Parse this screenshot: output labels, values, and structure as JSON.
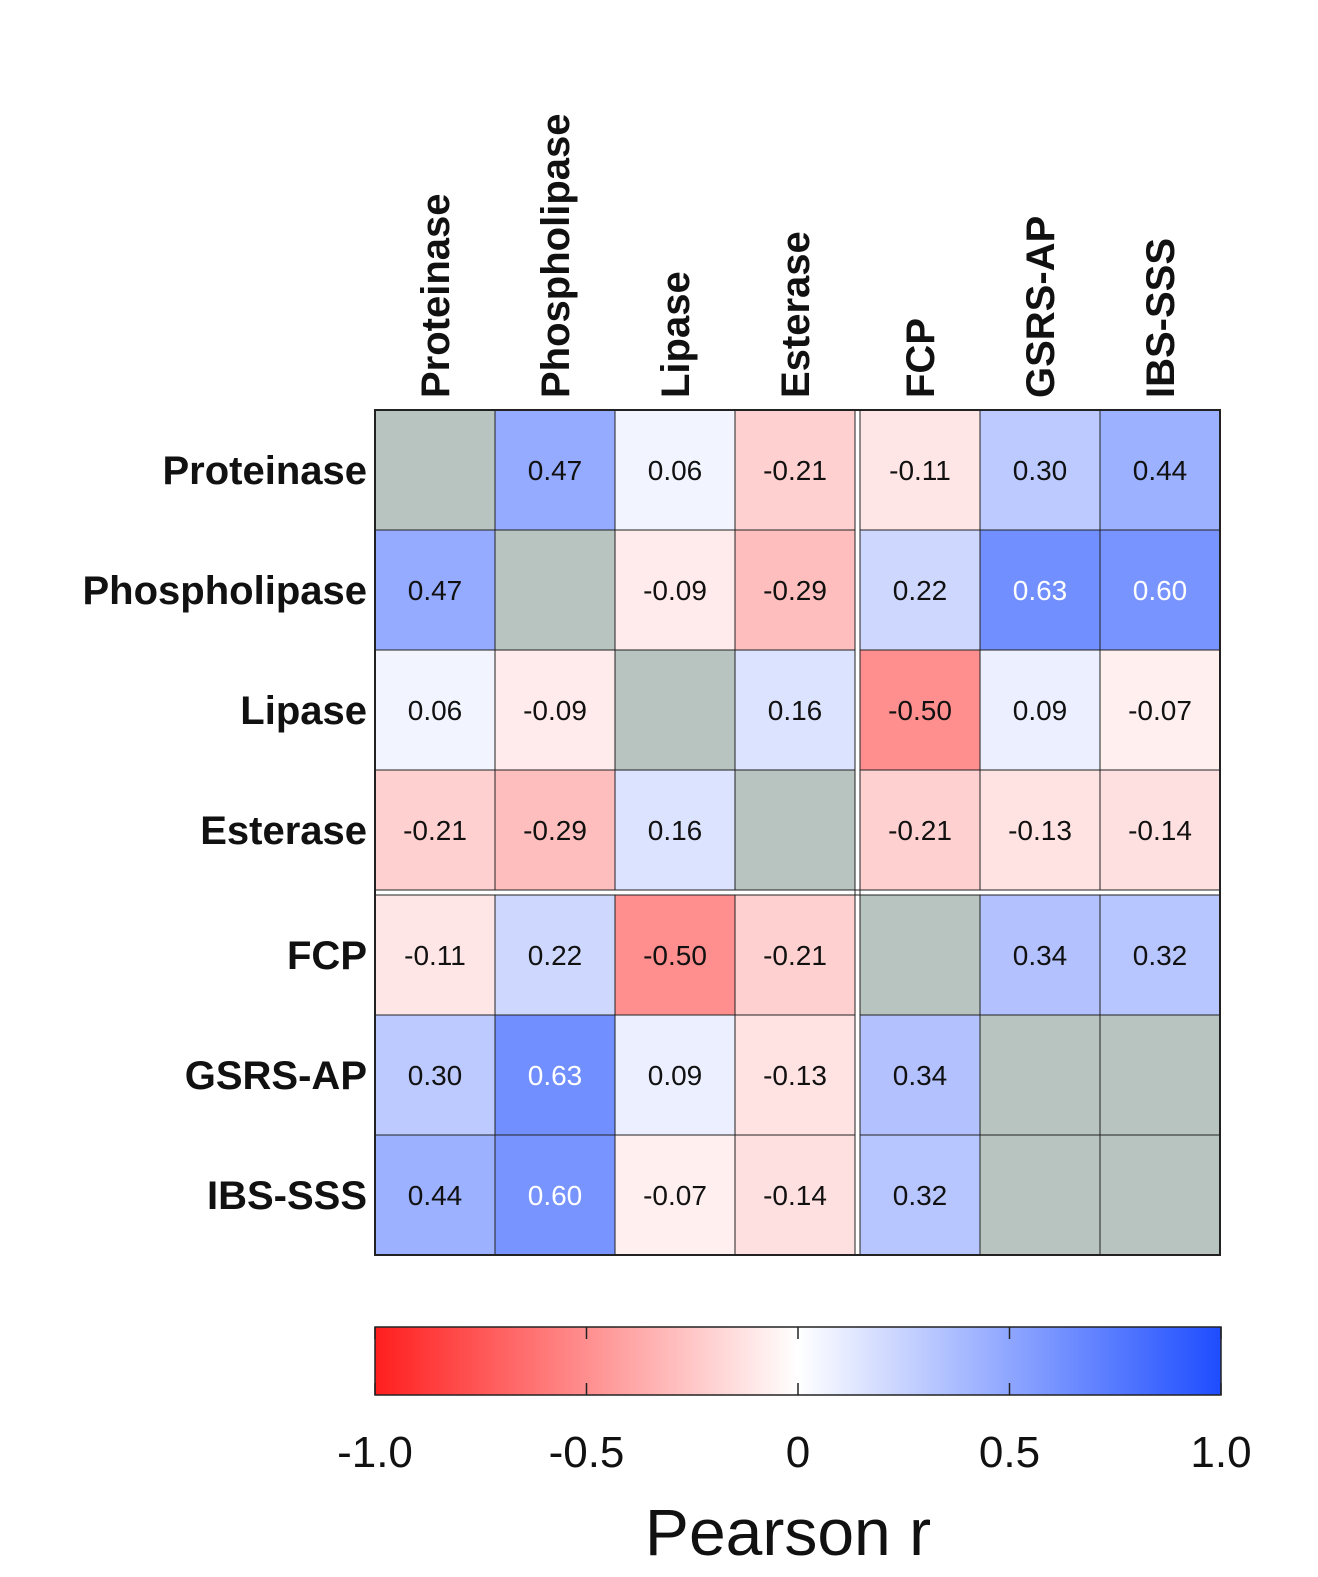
{
  "chart_data": {
    "type": "heatmap",
    "title": "",
    "rows": [
      "Proteinase",
      "Phospholipase",
      "Lipase",
      "Esterase",
      "FCP",
      "GSRS-AP",
      "IBS-SSS"
    ],
    "columns": [
      "Proteinase",
      "Phospholipase",
      "Lipase",
      "Esterase",
      "FCP",
      "GSRS-AP",
      "IBS-SSS"
    ],
    "values": [
      [
        null,
        0.47,
        0.06,
        -0.21,
        -0.11,
        0.3,
        0.44
      ],
      [
        0.47,
        null,
        -0.09,
        -0.29,
        0.22,
        0.63,
        0.6
      ],
      [
        0.06,
        -0.09,
        null,
        0.16,
        -0.5,
        0.09,
        -0.07
      ],
      [
        -0.21,
        -0.29,
        0.16,
        null,
        -0.21,
        -0.13,
        -0.14
      ],
      [
        -0.11,
        0.22,
        -0.5,
        -0.21,
        null,
        0.34,
        0.32
      ],
      [
        0.3,
        0.63,
        0.09,
        -0.13,
        0.34,
        null,
        null
      ],
      [
        0.44,
        0.6,
        -0.07,
        -0.14,
        0.32,
        null,
        null
      ]
    ],
    "labels": [
      [
        "",
        "0.47",
        "0.06",
        "-0.21",
        "-0.11",
        "0.30",
        "0.44"
      ],
      [
        "0.47",
        "",
        "-0.09",
        "-0.29",
        "0.22",
        "0.63",
        "0.60"
      ],
      [
        "0.06",
        "-0.09",
        "",
        "0.16",
        "-0.50",
        "0.09",
        "-0.07"
      ],
      [
        "-0.21",
        "-0.29",
        "0.16",
        "",
        "-0.21",
        "-0.13",
        "-0.14"
      ],
      [
        "-0.11",
        "0.22",
        "-0.50",
        "-0.21",
        "",
        "0.34",
        "0.32"
      ],
      [
        "0.30",
        "0.63",
        "0.09",
        "-0.13",
        "0.34",
        "",
        ""
      ],
      [
        "0.44",
        "0.60",
        "-0.07",
        "-0.14",
        "0.32",
        "",
        ""
      ]
    ],
    "missing_color": "#b8c4c0",
    "colorbar": {
      "title": "Pearson r",
      "range": [
        -1.0,
        1.0
      ],
      "ticks": [
        -1.0,
        -0.5,
        0,
        0.5,
        1.0
      ],
      "tick_labels": [
        "-1.0",
        "-0.5",
        "0",
        "0.5",
        "1.0"
      ],
      "colors": {
        "negative": "#ff1e1e",
        "zero": "#ffffff",
        "positive": "#1e4dff"
      }
    },
    "group_split_after_index": 3
  }
}
